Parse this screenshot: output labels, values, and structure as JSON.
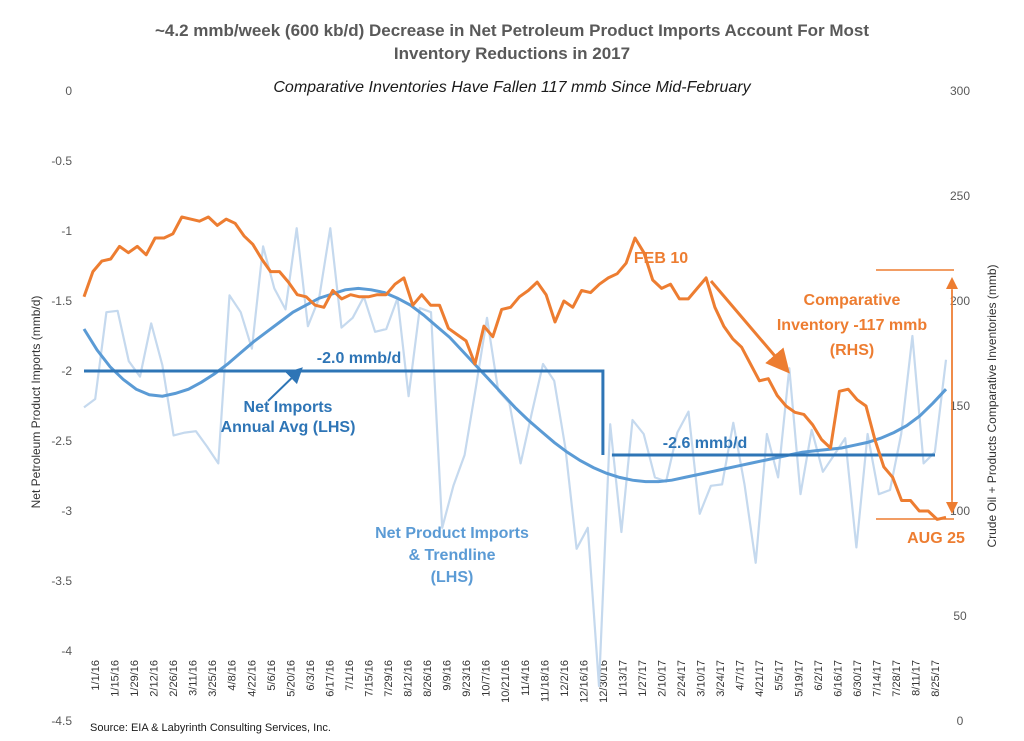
{
  "title_line1": "~4.2 mmb/week (600 kb/d) Decrease in Net Petroleum Product Imports Account For Most",
  "title_line2": "Inventory Reductions in 2017",
  "subtitle": "Comparative Inventories Have Fallen 117 mmb Since Mid-February",
  "source": "Source:  EIA & Labyrinth Consulting Services, Inc.",
  "colors": {
    "imports_weekly": "#c5d9ee",
    "trend": "#5b9bd5",
    "annual_avg": "#2e75b6",
    "inventory": "#ed7d31",
    "axis_text": "#595959"
  },
  "chart_data": {
    "type": "line",
    "title": "~4.2 mmb/week (600 kb/d) Decrease in Net Petroleum Product Imports Account For Most Inventory Reductions in 2017",
    "subtitle": "Comparative Inventories Have Fallen 117 mmb Since Mid-February",
    "ylabel_left": "Net Petroleum Product Imports (mmb/d)",
    "ylabel_right": "Crude Oil + Products Comparative Inventories (mmb)",
    "ylim_left": [
      -4.5,
      0
    ],
    "yticks_left": [
      "0",
      "-0.5",
      "-1",
      "-1.5",
      "-2",
      "-2.5",
      "-3",
      "-3.5",
      "-4",
      "-4.5"
    ],
    "ylim_right": [
      0,
      300
    ],
    "yticks_right": [
      "0",
      "50",
      "100",
      "150",
      "200",
      "250",
      "300"
    ],
    "x_tick_labels": [
      "1/1/16",
      "1/15/16",
      "1/29/16",
      "2/12/16",
      "2/26/16",
      "3/11/16",
      "3/25/16",
      "4/8/16",
      "4/22/16",
      "5/6/16",
      "5/20/16",
      "6/3/16",
      "6/17/16",
      "7/1/16",
      "7/15/16",
      "7/29/16",
      "8/12/16",
      "8/26/16",
      "9/9/16",
      "9/23/16",
      "10/7/16",
      "10/21/16",
      "11/4/16",
      "11/18/16",
      "12/2/16",
      "12/16/16",
      "12/30/16",
      "1/13/17",
      "1/27/17",
      "2/10/17",
      "2/24/17",
      "3/10/17",
      "3/24/17",
      "4/7/17",
      "4/21/17",
      "5/5/17",
      "5/19/17",
      "6/2/17",
      "6/16/17",
      "6/30/17",
      "7/14/17",
      "7/28/17",
      "8/11/17",
      "8/25/17"
    ],
    "grid": false,
    "series": [
      {
        "name": "Net Product Imports",
        "axis": "left",
        "values": [
          -2.26,
          -2.2,
          -1.58,
          -1.57,
          -1.93,
          -2.04,
          -1.66,
          -1.96,
          -2.46,
          -2.44,
          -2.43,
          -2.54,
          -2.66,
          -1.46,
          -1.58,
          -1.84,
          -1.11,
          -1.41,
          -1.56,
          -0.98,
          -1.68,
          -1.48,
          -0.98,
          -1.69,
          -1.62,
          -1.47,
          -1.72,
          -1.7,
          -1.48,
          -2.18,
          -1.55,
          -1.58,
          -3.12,
          -2.82,
          -2.6,
          -2.12,
          -1.62,
          -2.14,
          -2.23,
          -2.66,
          -2.3,
          -1.95,
          -2.07,
          -2.55,
          -3.27,
          -3.12,
          -4.25,
          -2.38,
          -3.15,
          -2.35,
          -2.45,
          -2.76,
          -2.79,
          -2.44,
          -2.29,
          -3.02,
          -2.82,
          -2.81,
          -2.37,
          -2.81,
          -3.37,
          -2.45,
          -2.76,
          -1.98,
          -2.88,
          -2.42,
          -2.72,
          -2.6,
          -2.48,
          -3.26,
          -2.45,
          -2.88,
          -2.85,
          -2.45,
          -1.75,
          -2.66,
          -2.58,
          -1.92
        ]
      },
      {
        "name": "Trendline",
        "axis": "left",
        "values": [
          -1.7,
          -1.85,
          -1.97,
          -2.06,
          -2.13,
          -2.17,
          -2.18,
          -2.16,
          -2.13,
          -2.08,
          -2.02,
          -1.95,
          -1.87,
          -1.79,
          -1.72,
          -1.65,
          -1.58,
          -1.53,
          -1.48,
          -1.45,
          -1.42,
          -1.41,
          -1.42,
          -1.44,
          -1.48,
          -1.53,
          -1.6,
          -1.68,
          -1.76,
          -1.86,
          -1.96,
          -2.06,
          -2.16,
          -2.26,
          -2.35,
          -2.43,
          -2.51,
          -2.58,
          -2.64,
          -2.69,
          -2.73,
          -2.76,
          -2.78,
          -2.79,
          -2.79,
          -2.78,
          -2.76,
          -2.74,
          -2.72,
          -2.7,
          -2.68,
          -2.66,
          -2.64,
          -2.62,
          -2.6,
          -2.58,
          -2.57,
          -2.56,
          -2.55,
          -2.53,
          -2.51,
          -2.48,
          -2.44,
          -2.39,
          -2.32,
          -2.23,
          -2.13
        ]
      },
      {
        "name": "Annual Avg",
        "axis": "left",
        "x_breaks": [
          "1/1/16",
          "12/30/16",
          "1/6/17",
          "8/25/17"
        ],
        "values": [
          -2.0,
          -2.0,
          -2.6,
          -2.6
        ]
      },
      {
        "name": "Comparative Inventory",
        "axis": "right",
        "values": [
          202,
          214,
          219,
          220,
          226,
          223,
          226,
          222,
          230,
          230,
          232,
          240,
          239,
          238,
          240,
          236,
          239,
          237,
          231,
          227,
          220,
          214,
          214,
          209,
          203,
          202,
          198,
          197,
          205,
          201,
          203,
          202,
          202,
          203,
          203,
          208,
          211,
          198,
          203,
          198,
          198,
          187,
          184,
          181,
          170,
          188,
          183,
          196,
          197,
          202,
          205,
          209,
          203,
          190,
          200,
          197,
          205,
          204,
          208,
          211,
          213,
          218,
          230,
          223,
          210,
          206,
          208,
          201,
          201,
          206,
          211,
          197,
          188,
          182,
          178,
          170,
          162,
          163,
          155,
          150,
          147,
          146,
          141,
          134,
          130,
          157,
          158,
          153,
          150,
          134,
          121,
          116,
          105,
          105,
          100,
          100,
          96,
          97
        ]
      }
    ],
    "annotations": [
      {
        "text": "-2.0 mmb/d"
      },
      {
        "text": "Net Imports\nAnnual Avg (LHS)"
      },
      {
        "text": "-2.6 mmb/d"
      },
      {
        "text": "Net Product Imports\n& Trendline\n(LHS)"
      },
      {
        "text": "FEB 10"
      },
      {
        "text": "Comparative\nInventory -117 mmb\n(RHS)"
      },
      {
        "text": "AUG 25"
      }
    ]
  }
}
